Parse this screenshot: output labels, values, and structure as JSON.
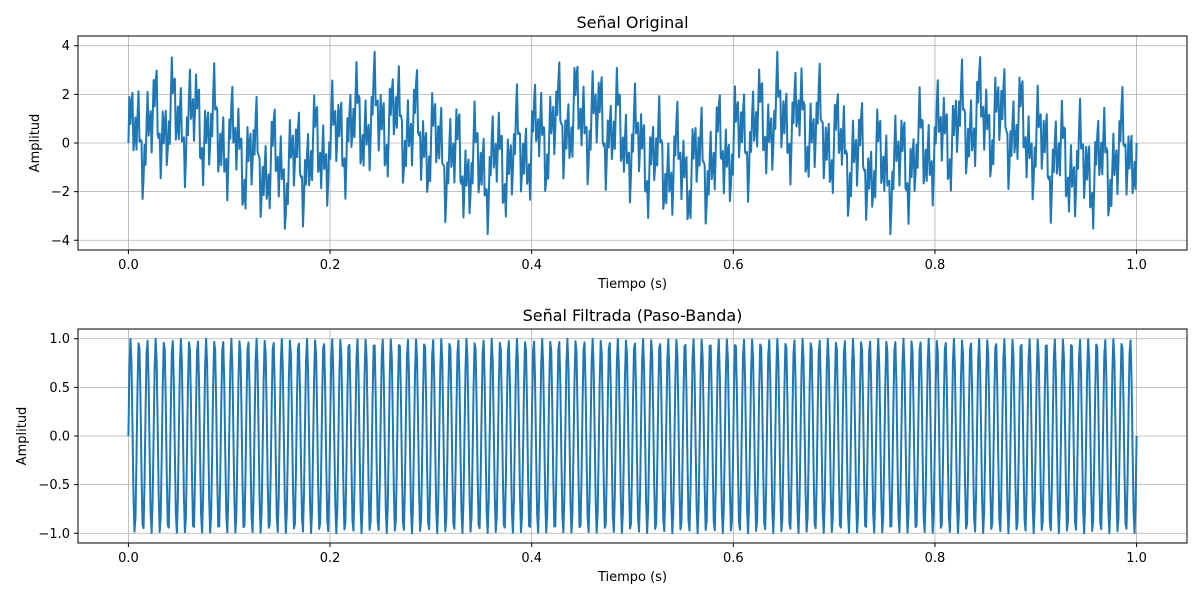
{
  "chart_data": [
    {
      "type": "line",
      "title": "Señal Original",
      "xlabel": "Tiempo (s)",
      "ylabel": "Amplitud",
      "xlim": [
        -0.05,
        1.05
      ],
      "ylim": [
        -4.4,
        4.4
      ],
      "xticks": [
        0.0,
        0.2,
        0.4,
        0.6,
        0.8,
        1.0
      ],
      "xtick_labels": [
        "0.0",
        "0.2",
        "0.4",
        "0.6",
        "0.8",
        "1.0"
      ],
      "yticks": [
        -4,
        -2,
        0,
        2,
        4
      ],
      "ytick_labels": [
        "−4",
        "−2",
        "0",
        "2",
        "4"
      ],
      "grid": true,
      "color": "#1f77b4",
      "series": [
        {
          "x_range": [
            0,
            1
          ],
          "num_points": 1000,
          "components": [
            {
              "amplitude": 1.0,
              "frequency_hz": 5
            },
            {
              "amplitude": 1.0,
              "frequency_hz": 50
            },
            {
              "amplitude": 1.0,
              "frequency_hz": 120
            },
            {
              "amplitude": 1.0,
              "frequency_hz": 333
            }
          ]
        }
      ]
    },
    {
      "type": "line",
      "title": "Señal Filtrada (Paso-Banda)",
      "xlabel": "Tiempo (s)",
      "ylabel": "Amplitud",
      "xlim": [
        -0.05,
        1.05
      ],
      "ylim": [
        -1.1,
        1.1
      ],
      "xticks": [
        0.0,
        0.2,
        0.4,
        0.6,
        0.8,
        1.0
      ],
      "xtick_labels": [
        "0.0",
        "0.2",
        "0.4",
        "0.6",
        "0.8",
        "1.0"
      ],
      "yticks": [
        -1.0,
        -0.5,
        0.0,
        0.5,
        1.0
      ],
      "ytick_labels": [
        "−1.0",
        "−0.5",
        "0.0",
        "0.5",
        "1.0"
      ],
      "grid": true,
      "color": "#1f77b4",
      "series": [
        {
          "x_range": [
            0,
            1
          ],
          "num_points": 1000,
          "components": [
            {
              "amplitude": 1.0,
              "frequency_hz": 120
            }
          ]
        }
      ]
    }
  ]
}
